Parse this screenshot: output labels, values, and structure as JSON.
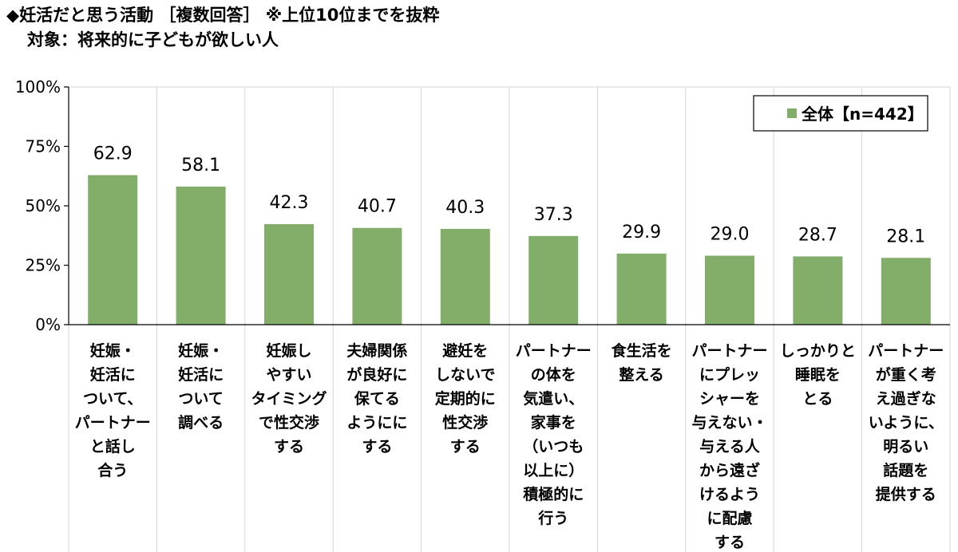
{
  "chart_data": {
    "type": "bar",
    "title": "◆妊活だと思う活動 ［複数回答］ ※上位10位までを抜粋",
    "subtitle": "対象：将来的に子どもが欲しい人",
    "categories": [
      [
        "妊娠・",
        "妊活に",
        "ついて、",
        "パートナー",
        "と話し",
        "合う"
      ],
      [
        "妊娠・",
        "妊活に",
        "ついて",
        "調べる"
      ],
      [
        "妊娠し",
        "やすい",
        "タイミング",
        "で性交渉",
        "する"
      ],
      [
        "夫婦関係",
        "が良好に",
        "保てる",
        "ようにに",
        "する"
      ],
      [
        "避妊を",
        "しないで",
        "定期的に",
        "性交渉",
        "する"
      ],
      [
        "パートナー",
        "の体を",
        "気遣い、",
        "家事を",
        "（いつも",
        "以上に）",
        "積極的に",
        "行う"
      ],
      [
        "食生活を",
        "整える"
      ],
      [
        "パートナー",
        "にプレッ",
        "シャーを",
        "与えない・",
        "与える人",
        "から遠ざ",
        "けるよう",
        "に配慮",
        "する"
      ],
      [
        "しっかりと",
        "睡眠を",
        "とる"
      ],
      [
        "パートナー",
        "が重く考",
        "え過ぎな",
        "いように、",
        "明るい",
        "話題を",
        "提供する"
      ]
    ],
    "series": [
      {
        "name": "全体【n=442】",
        "values": [
          62.9,
          58.1,
          42.3,
          40.7,
          40.3,
          37.3,
          29.9,
          29.0,
          28.7,
          28.1
        ],
        "color": "#82ae6a"
      }
    ],
    "value_labels": [
      "62.9",
      "58.1",
      "42.3",
      "40.7",
      "40.3",
      "37.3",
      "29.9",
      "29.0",
      "28.7",
      "28.1"
    ],
    "ylim": [
      0,
      100
    ],
    "yticks": [
      0,
      25,
      50,
      75,
      100
    ],
    "ytick_labels": [
      "0%",
      "25%",
      "50%",
      "75%",
      "100%"
    ],
    "grid": true,
    "legend_position": "top-right",
    "xlabel": "",
    "ylabel": ""
  }
}
